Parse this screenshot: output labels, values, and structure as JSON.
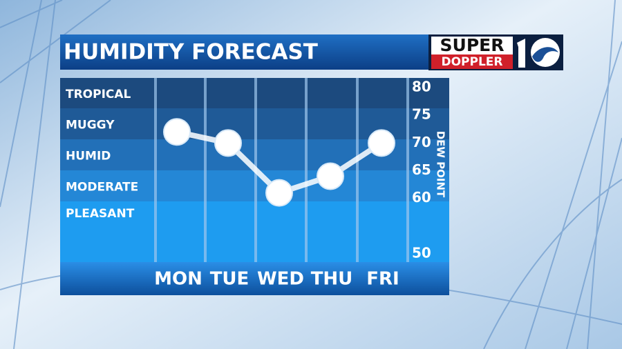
{
  "logo": {
    "top": "SUPER",
    "bottom": "DOPPLER"
  },
  "chart_data": {
    "type": "line",
    "title": "HUMIDITY FORECAST",
    "categories": [
      "MON",
      "TUE",
      "WED",
      "THU",
      "FRI"
    ],
    "values": [
      72,
      70,
      61,
      64,
      70
    ],
    "color": "#ffffff",
    "y_label": "DEW POINT",
    "ylim": [
      50,
      80
    ],
    "yticks": [
      50,
      60,
      65,
      70,
      75,
      80
    ],
    "bands": [
      "TROPICAL",
      "MUGGY",
      "HUMID",
      "MODERATE",
      "PLEASANT"
    ]
  }
}
